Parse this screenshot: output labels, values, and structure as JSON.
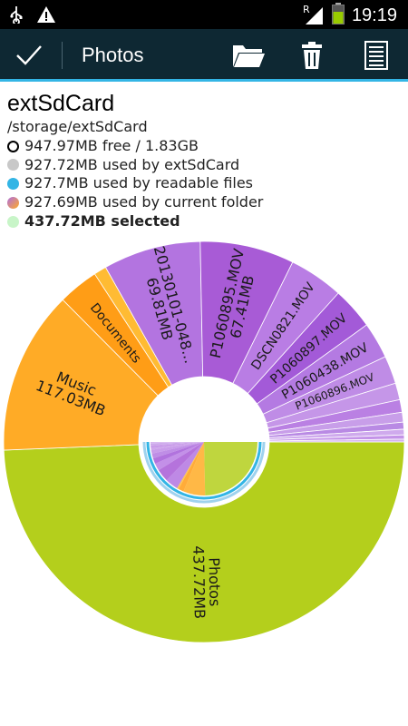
{
  "status_bar": {
    "time": "19:19",
    "icons": [
      "usb-icon",
      "warning-icon",
      "roaming-icon",
      "signal-icon",
      "battery-icon"
    ],
    "roaming_letter": "R"
  },
  "action_bar": {
    "title": "Photos",
    "buttons": [
      "check-icon",
      "folder-icon",
      "trash-icon",
      "list-icon"
    ]
  },
  "storage": {
    "name": "extSdCard",
    "path": "/storage/extSdCard",
    "free": "947.97MB free / 1.83GB",
    "used_device": "927.72MB used by extSdCard",
    "used_readable": "927.7MB used by readable files",
    "used_folder": "927.69MB used by current folder",
    "selected": "437.72MB selected"
  },
  "colors": {
    "accent": "#33b5e5",
    "action_bar": "#0e2833",
    "photos": "#b4cf1c",
    "music": "#ffab26",
    "documents": "#ff9d16",
    "movies": "#b06ee0",
    "selected_dot": "#c8f5c8",
    "device_dot": "#c8c8c8"
  },
  "chart_data": {
    "type": "pie",
    "segments": [
      {
        "label": "Photos",
        "value_label": "437.72MB",
        "value": 437.72
      },
      {
        "label": "Music",
        "value_label": "117.03MB",
        "value": 117.03
      },
      {
        "label": "Documents",
        "value_label": "",
        "value": 29
      },
      {
        "label": "",
        "value_label": "",
        "value": 9
      },
      {
        "label": "20130101-048...",
        "value_label": "69.81MB",
        "value": 69.81
      },
      {
        "label": "P1060895.MOV",
        "value_label": "67.41MB",
        "value": 67.41
      },
      {
        "label": "DSCN0821.MOV",
        "value_label": "",
        "value": 39
      },
      {
        "label": "P1060897.MOV",
        "value_label": "",
        "value": 30
      },
      {
        "label": "P1060438.MOV",
        "value_label": "",
        "value": 26
      },
      {
        "label": "P1060896.MOV",
        "value_label": "",
        "value": 20
      },
      {
        "label": "",
        "value_label": "",
        "value": 12
      },
      {
        "label": "",
        "value_label": "",
        "value": 9
      },
      {
        "label": "",
        "value_label": "",
        "value": 7
      },
      {
        "label": "",
        "value_label": "",
        "value": 5
      },
      {
        "label": "",
        "value_label": "",
        "value": 4
      },
      {
        "label": "",
        "value_label": "",
        "value": 3
      },
      {
        "label": "",
        "value_label": "",
        "value": 2
      }
    ]
  }
}
